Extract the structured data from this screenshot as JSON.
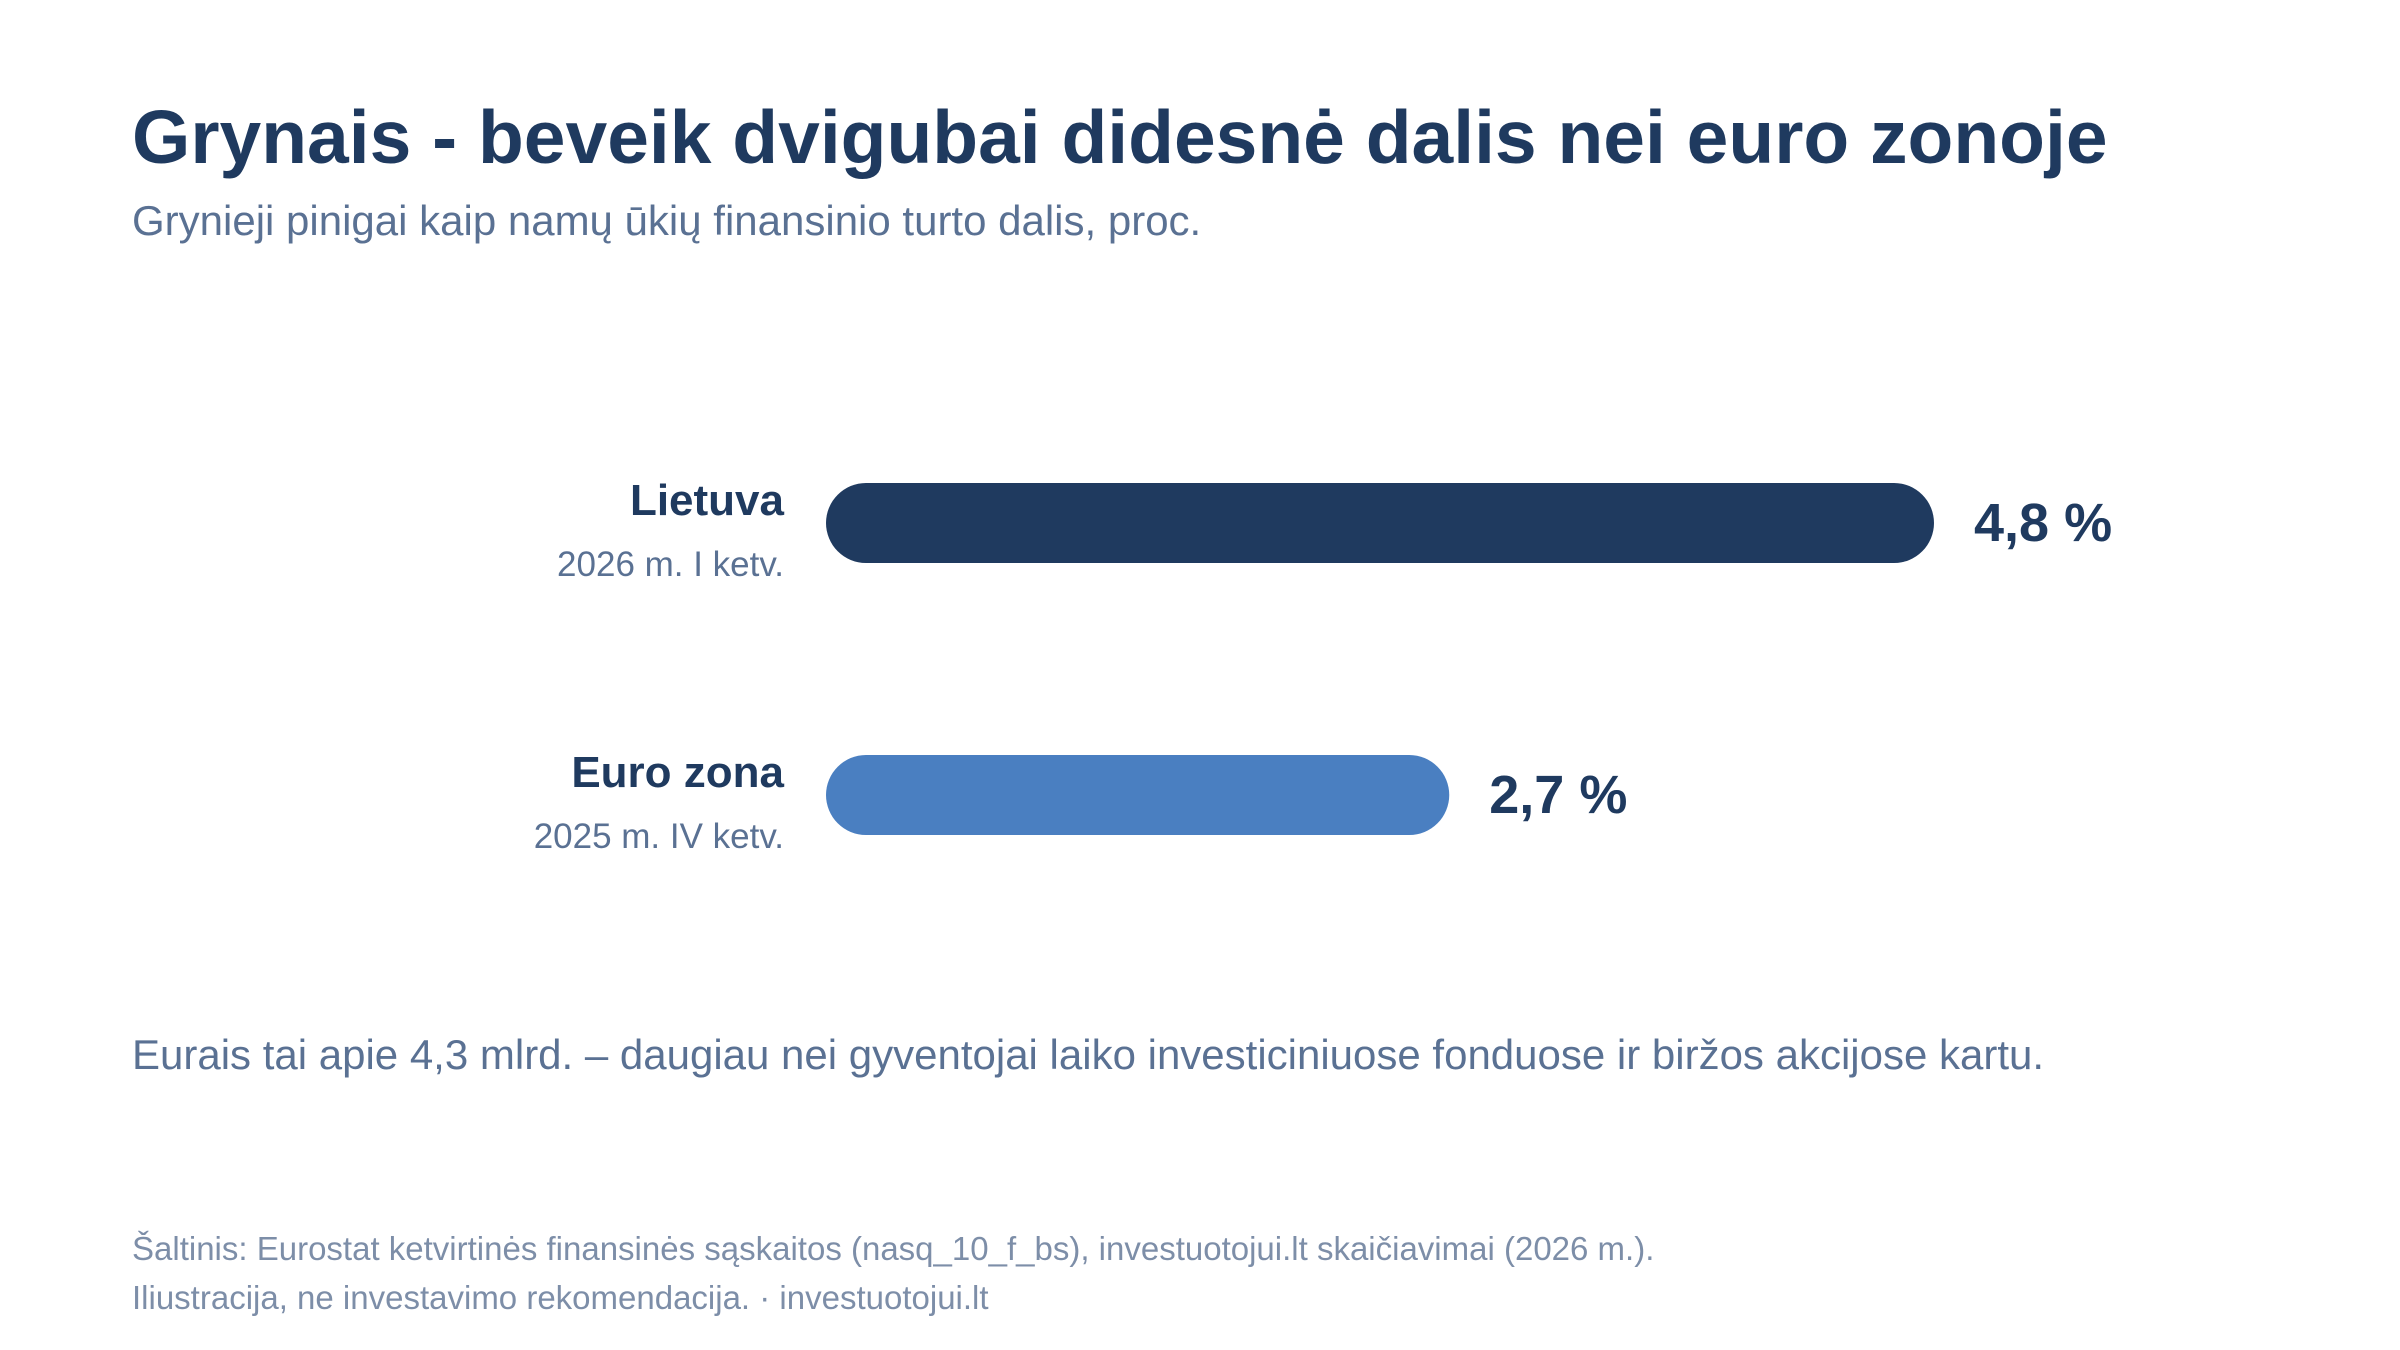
{
  "header": {
    "title": "Grynais - beveik dvigubai didesnė dalis nei euro zonoje",
    "subtitle": "Grynieji pinigai kaip namų ūkių finansinio turto dalis, proc."
  },
  "note": "Eurais tai apie 4,3 mlrd. – daugiau nei gyventojai laiko investiciniuose fonduose ir biržos akcijose kartu.",
  "footer": {
    "source": "Šaltinis: Eurostat ketvirtinės finansinės sąskaitos (nasq_10_f_bs), investuotojui.lt skaičiavimai (2026 m.).",
    "disclaimer": "Iliustracija, ne investavimo rekomendacija. · investuotojui.lt"
  },
  "chart_data": {
    "type": "bar",
    "orientation": "horizontal",
    "categories": [
      "Lietuva",
      "Euro zona"
    ],
    "periods": [
      "2026 m. I ketv.",
      "2025 m. IV ketv."
    ],
    "values": [
      4.8,
      2.7
    ],
    "value_labels": [
      "4,8 %",
      "2,7 %"
    ],
    "colors": [
      "#1f3a5f",
      "#4a7fc1"
    ],
    "title": "Grynais - beveik dvigubai didesnė dalis nei euro zonoje",
    "subtitle": "Grynieji pinigai kaip namų ūkių finansinio turto dalis, proc.",
    "xlim": [
      0,
      4.8
    ],
    "grid": false,
    "legend": "none"
  }
}
